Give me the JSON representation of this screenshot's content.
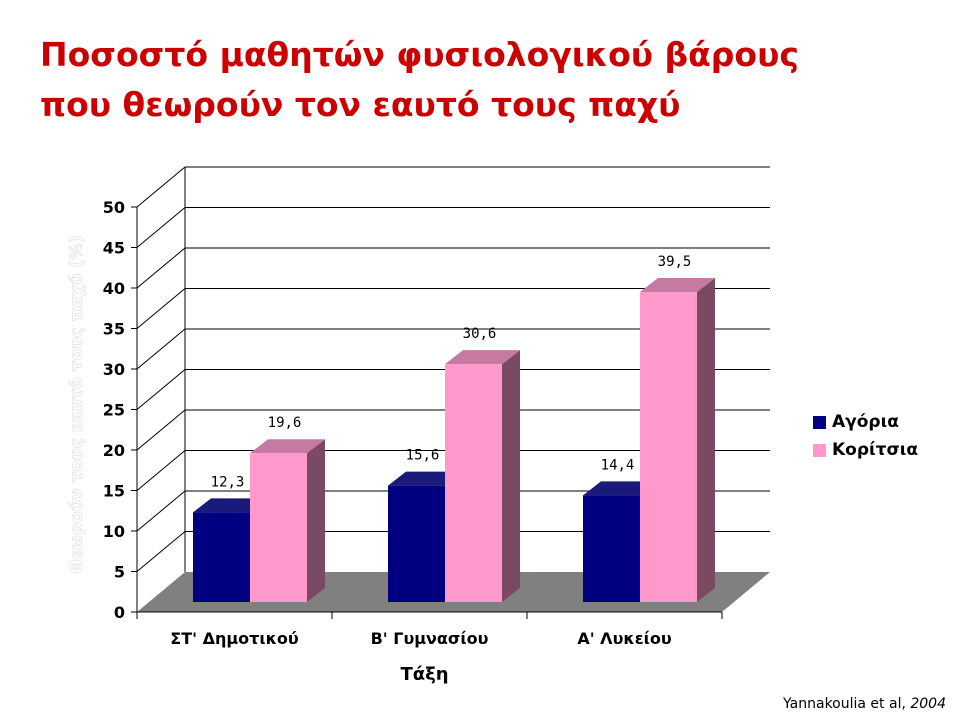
{
  "title": {
    "line1": "Ποσοστό μαθητών φυσιολογικού βάρους",
    "line2": "που θεωρούν τον εαυτό τους παχύ"
  },
  "citation": {
    "authors": "Yannakoulia et al, ",
    "year": "2004"
  },
  "chart_data": {
    "type": "bar",
    "categories": [
      "ΣΤ' Δημοτικού",
      "Β' Γυμνασίου",
      "Α' Λυκείου"
    ],
    "series": [
      {
        "name": "Αγόρια",
        "values": [
          12.3,
          15.6,
          14.4
        ],
        "labels": [
          "12,3",
          "15,6",
          "14,4"
        ],
        "color": "#000080",
        "side_color": "#00004d",
        "top_color": "#1a1a7a"
      },
      {
        "name": "Κορίτσια",
        "values": [
          19.6,
          30.6,
          39.5
        ],
        "labels": [
          "19,6",
          "30,6",
          "39,5"
        ],
        "color": "#ff99cc",
        "side_color": "#7a4a63",
        "top_color": "#c77aa1"
      }
    ],
    "xlabel": "Τάξη",
    "ylabel": "Θεωρούν τους εαυτό τους παχύ (%)",
    "ylim": [
      0,
      50
    ],
    "yticks": [
      0,
      5,
      10,
      15,
      20,
      25,
      30,
      35,
      40,
      45,
      50
    ],
    "grid": true,
    "legend_position": "right",
    "floor_color": "#808080"
  }
}
